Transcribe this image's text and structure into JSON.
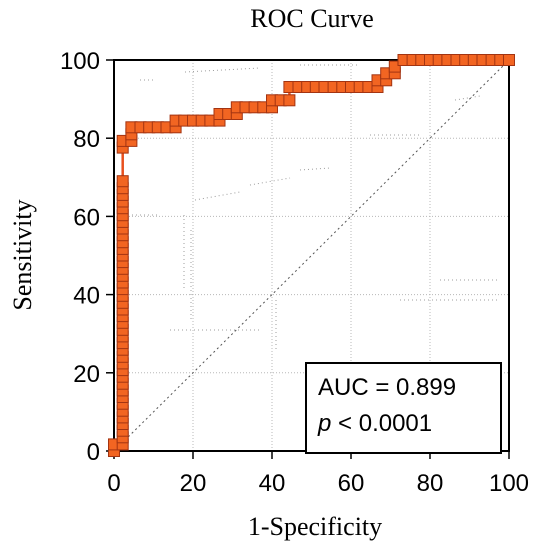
{
  "chart_data": {
    "type": "line",
    "title": "ROC Curve",
    "xlabel": "1-Specificity",
    "ylabel": "Sensitivity",
    "xlim": [
      0,
      100
    ],
    "ylim": [
      0,
      100
    ],
    "xticks": [
      "0",
      "20",
      "40",
      "60",
      "80",
      "100"
    ],
    "yticks": [
      "0",
      "20",
      "40",
      "60",
      "80",
      "100"
    ],
    "grid": true,
    "diagonal_reference_line": true,
    "marker": "square",
    "colors": {
      "line": "#e8501e",
      "marker_fill": "#f26522",
      "marker_edge": "#a33412",
      "grid": "#b8b8b8"
    },
    "annotation": {
      "auc_label": "AUC = 0.899",
      "p_symbol": "p",
      "p_rest": " < 0.0001"
    },
    "series": [
      {
        "x": [
          0,
          0,
          2.2,
          2.2,
          2.2,
          2.2,
          2.2,
          2.2,
          2.2,
          2.2,
          2.2,
          2.2,
          2.2,
          2.2,
          2.2,
          2.2,
          2.2,
          2.2,
          2.2,
          2.2,
          2.2,
          2.2,
          2.2,
          2.2,
          2.2,
          2.2,
          2.2,
          2.2,
          2.2,
          2.2,
          2.2,
          2.2,
          2.2,
          2.2,
          2.2,
          2.2,
          2.2,
          2.2,
          2.2,
          2.2,
          2.2,
          2.2,
          2.2,
          2.2,
          4.4,
          4.4,
          4.4,
          6.7,
          8.9,
          11.1,
          13.3,
          15.6,
          15.6,
          17.8,
          20.0,
          22.2,
          24.4,
          26.7,
          26.7,
          28.9,
          31.1,
          31.1,
          33.3,
          35.6,
          37.8,
          40.0,
          40.0,
          42.2,
          44.4,
          44.4,
          46.7,
          48.9,
          51.1,
          53.3,
          55.6,
          57.8,
          60.0,
          62.2,
          64.4,
          66.7,
          66.7,
          68.9,
          68.9,
          71.1,
          71.1,
          73.3,
          75.6,
          77.8,
          80.0,
          82.2,
          84.4,
          86.7,
          88.9,
          91.1,
          93.3,
          95.6,
          97.8,
          100
        ],
        "y": [
          0,
          1.7,
          1.7,
          3.5,
          5.2,
          6.9,
          8.6,
          10.3,
          12.1,
          13.8,
          15.5,
          17.2,
          19.0,
          20.7,
          22.4,
          24.1,
          25.9,
          27.6,
          29.3,
          31.0,
          32.8,
          34.5,
          36.2,
          37.9,
          39.7,
          41.4,
          43.1,
          44.8,
          46.6,
          48.3,
          50.0,
          51.7,
          53.4,
          55.2,
          56.9,
          58.6,
          60.3,
          62.1,
          63.8,
          65.5,
          67.2,
          69.0,
          77.6,
          79.3,
          79.3,
          81.0,
          82.8,
          82.8,
          82.8,
          82.8,
          82.8,
          82.8,
          84.5,
          84.5,
          84.5,
          84.5,
          84.5,
          84.5,
          86.2,
          86.2,
          86.2,
          87.9,
          87.9,
          87.9,
          87.9,
          87.9,
          89.7,
          89.7,
          89.7,
          93.1,
          93.1,
          93.1,
          93.1,
          93.1,
          93.1,
          93.1,
          93.1,
          93.1,
          93.1,
          93.1,
          94.8,
          94.8,
          96.6,
          96.6,
          98.3,
          100,
          100,
          100,
          100,
          100,
          100,
          100,
          100,
          100,
          100,
          100,
          100,
          100
        ]
      }
    ]
  }
}
